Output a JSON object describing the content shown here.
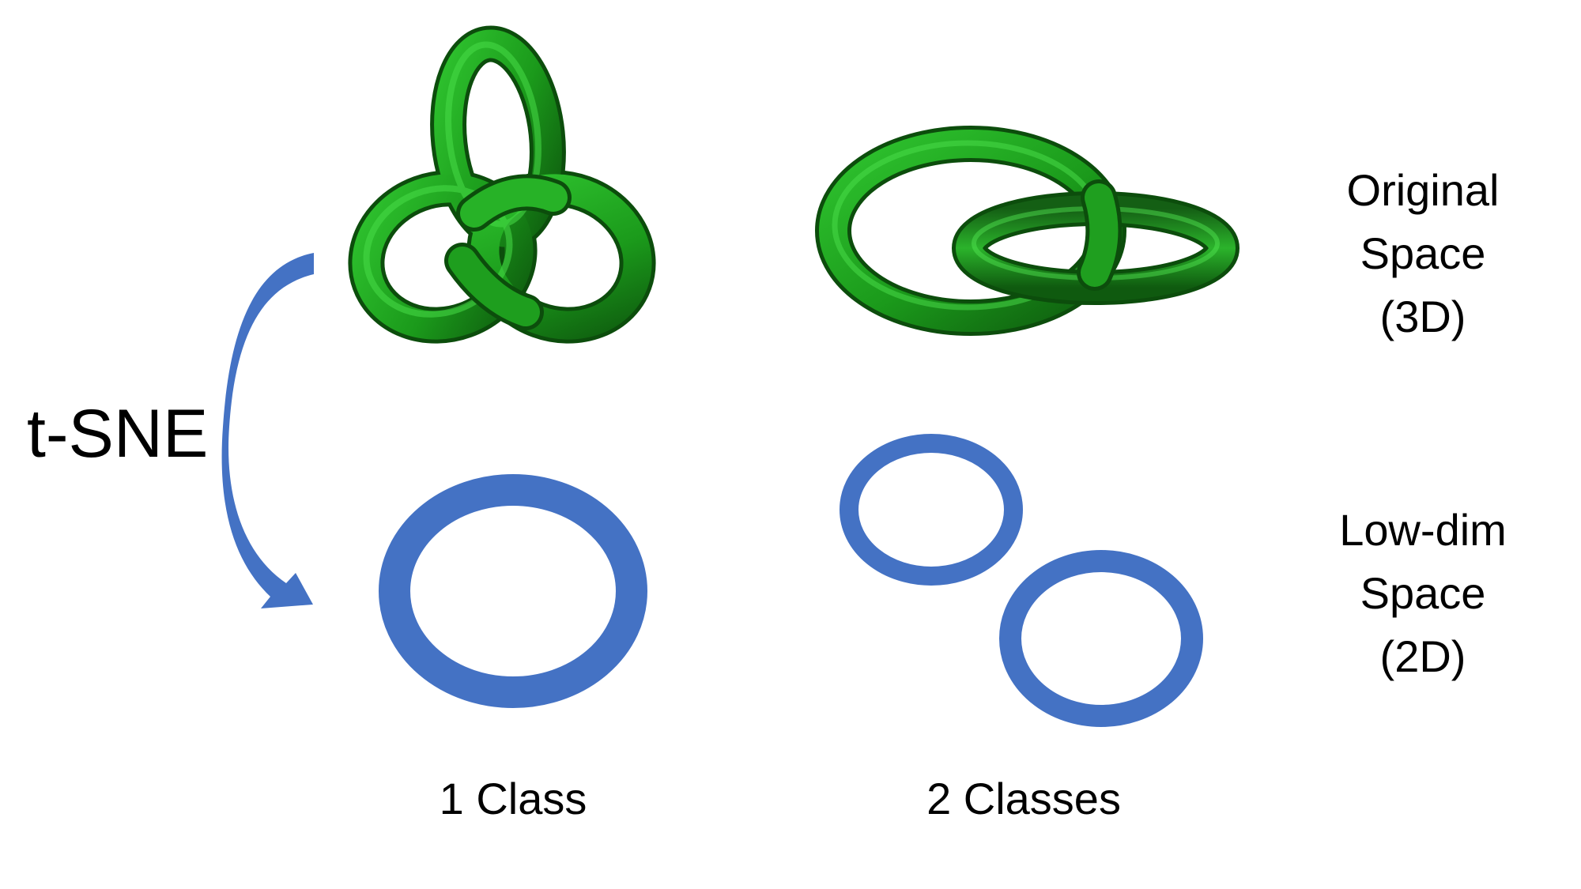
{
  "colors": {
    "tube_light": "#3fd63f",
    "tube_mid": "#1fa21f",
    "tube_dark": "#0f5c0f",
    "ring_blue": "#4472c4",
    "background": "#ffffff"
  },
  "labels": {
    "method": "t-SNE",
    "original_space": [
      "Original",
      "Space",
      "(3D)"
    ],
    "lowdim_space": [
      "Low-dim",
      "Space",
      "(2D)"
    ],
    "col1": "1 Class",
    "col2": "2 Classes"
  },
  "shapes": {
    "top_left": "trefoil-knot",
    "top_right": "hopf-link",
    "bottom_left": "single-ring",
    "bottom_right": "two-separate-rings",
    "arrow": "curved-arrow"
  }
}
